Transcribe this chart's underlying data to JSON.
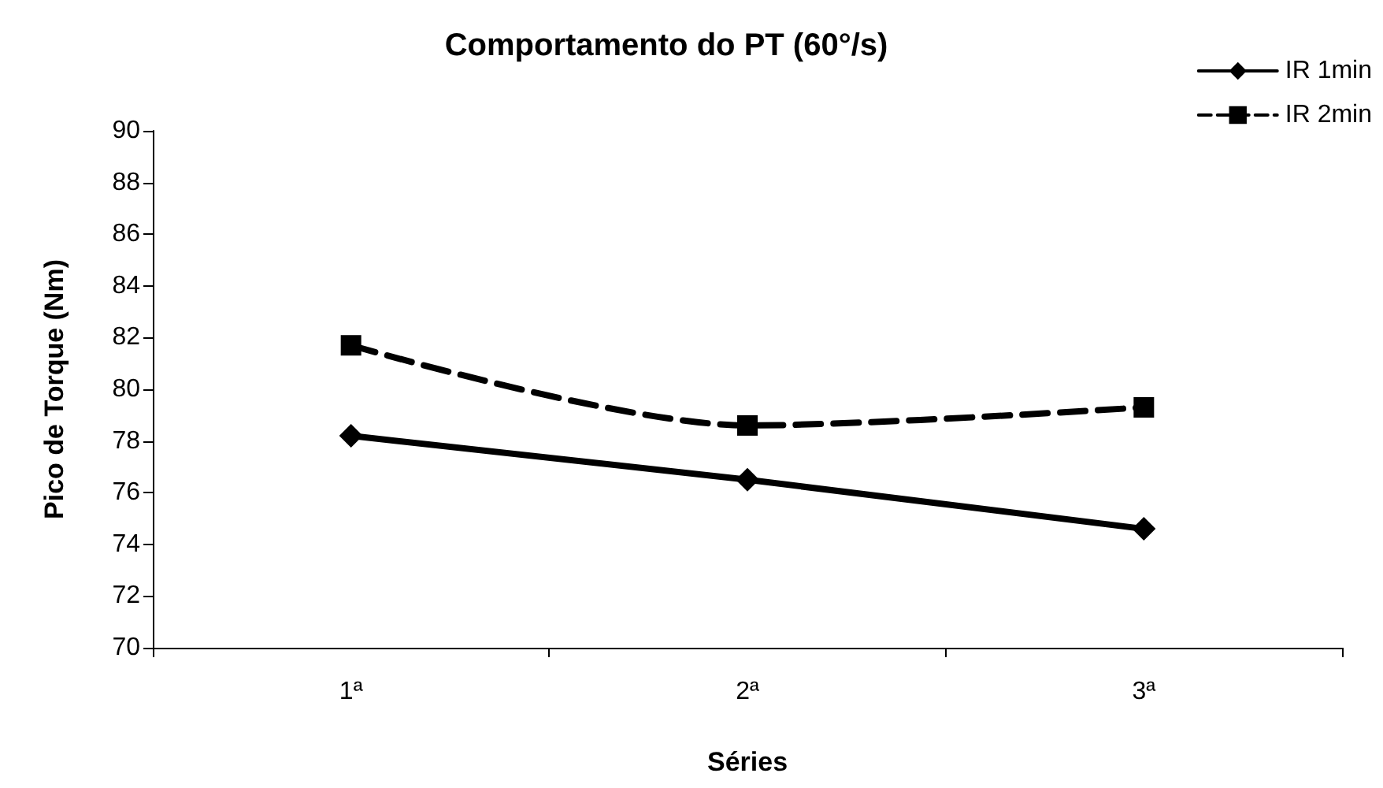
{
  "chart_data": {
    "type": "line",
    "title": "Comportamento do PT (60°/s)",
    "xlabel": "Séries",
    "ylabel": "Pico de Torque (Nm)",
    "categories": [
      "1ª",
      "2ª",
      "3ª"
    ],
    "series": [
      {
        "name": "IR 1min",
        "color": "#000000",
        "values": [
          78.2,
          76.5,
          74.6
        ],
        "marker": "diamond",
        "line_style": "solid"
      },
      {
        "name": "IR 2min",
        "color": "#000000",
        "values": [
          81.7,
          78.6,
          79.3
        ],
        "marker": "square",
        "line_style": "dashed"
      }
    ],
    "ylim": [
      70,
      90
    ],
    "yticks": [
      70,
      72,
      74,
      76,
      78,
      80,
      82,
      84,
      86,
      88,
      90
    ],
    "grid": false,
    "legend": "top right"
  }
}
